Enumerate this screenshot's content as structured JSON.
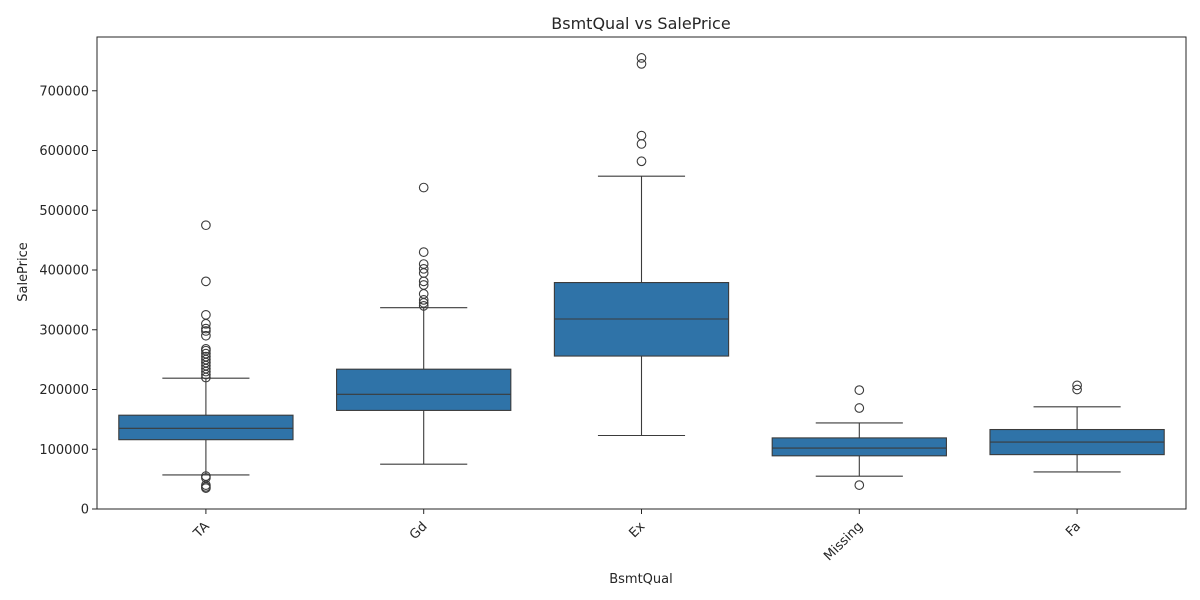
{
  "chart_data": {
    "type": "box",
    "title": "BsmtQual vs SalePrice",
    "xlabel": "BsmtQual",
    "ylabel": "SalePrice",
    "ylim": [
      0,
      790000
    ],
    "yticks": [
      0,
      100000,
      200000,
      300000,
      400000,
      500000,
      600000,
      700000
    ],
    "ytick_labels": [
      "0",
      "100000",
      "200000",
      "300000",
      "400000",
      "500000",
      "600000",
      "700000"
    ],
    "grid": false,
    "color": "#2f73a8",
    "categories": [
      "TA",
      "Gd",
      "Ex",
      "Missing",
      "Fa"
    ],
    "boxes": [
      {
        "category": "TA",
        "whisker_low": 57000,
        "q1": 116000,
        "median": 135000,
        "q3": 157000,
        "whisker_high": 219000,
        "outliers": [
          475000,
          381000,
          325000,
          310000,
          302000,
          298000,
          290000,
          268000,
          265000,
          260000,
          255000,
          250000,
          245000,
          240000,
          235000,
          230000,
          225000,
          220000,
          55000,
          52000,
          40000,
          37000,
          35000
        ]
      },
      {
        "category": "Gd",
        "whisker_low": 75000,
        "q1": 165000,
        "median": 192000,
        "q3": 234000,
        "whisker_high": 337000,
        "outliers": [
          538000,
          430000,
          410000,
          402000,
          395000,
          381000,
          375000,
          360000,
          350000,
          345000,
          340000
        ]
      },
      {
        "category": "Ex",
        "whisker_low": 123000,
        "q1": 256000,
        "median": 318000,
        "q3": 379000,
        "whisker_high": 557000,
        "outliers": [
          755000,
          745000,
          625000,
          611000,
          582000
        ]
      },
      {
        "category": "Missing",
        "whisker_low": 55000,
        "q1": 89000,
        "median": 102000,
        "q3": 119000,
        "whisker_high": 144000,
        "outliers": [
          199000,
          169000,
          40000
        ]
      },
      {
        "category": "Fa",
        "whisker_low": 62000,
        "q1": 91000,
        "median": 112000,
        "q3": 133000,
        "whisker_high": 171000,
        "outliers": [
          207000,
          200000
        ]
      }
    ]
  }
}
